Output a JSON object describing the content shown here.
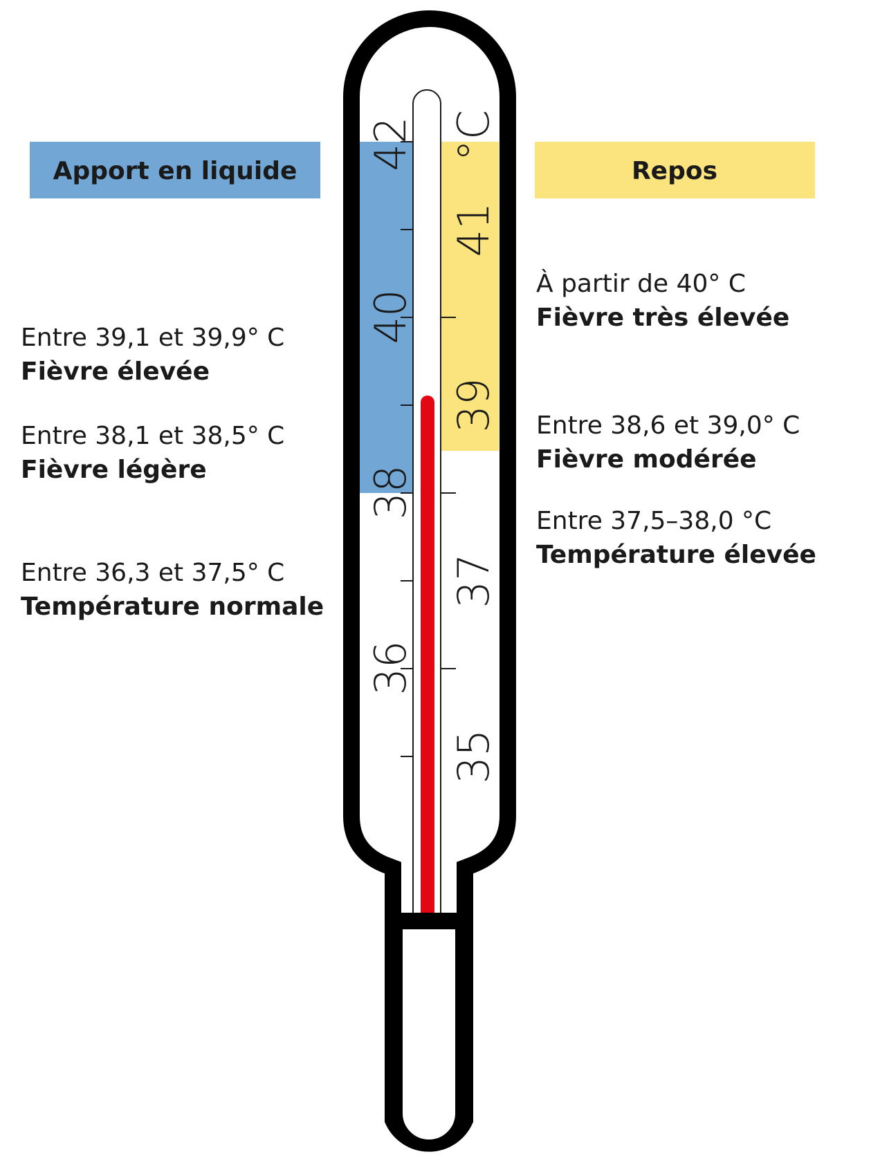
{
  "actions": {
    "left": "Apport en liquide",
    "right": "Repos"
  },
  "scale": {
    "left": [
      "42",
      "40",
      "38",
      "36"
    ],
    "right": [
      "°C",
      "41",
      "39",
      "37",
      "35"
    ]
  },
  "ranges": {
    "left": [
      {
        "range": "Entre 39,1 et 39,9° C",
        "label": "Fièvre élevée"
      },
      {
        "range": "Entre 38,1 et 38,5° C",
        "label": "Fièvre légère"
      },
      {
        "range": "Entre 36,3 et 37,5° C",
        "label": "Température normale"
      }
    ],
    "right": [
      {
        "range": "À partir de 40° C",
        "label": "Fièvre très élevée"
      },
      {
        "range": "Entre 38,6 et 39,0° C",
        "label": "Fièvre modérée"
      },
      {
        "range": "Entre 37,5–38,0 °C",
        "label": "Température élevée"
      }
    ]
  }
}
